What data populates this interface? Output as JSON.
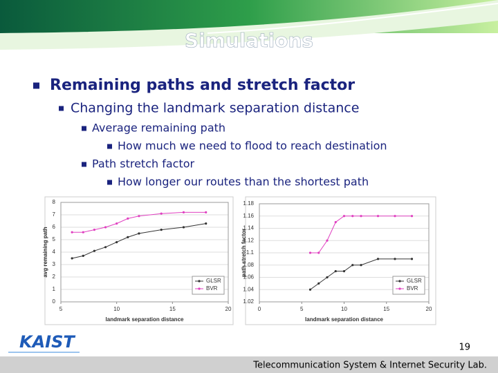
{
  "slide": {
    "title": "Simulations",
    "bullets": [
      {
        "text": "Remaining paths and stretch factor",
        "level": 1
      },
      {
        "text": "Changing the landmark separation distance",
        "level": 2
      },
      {
        "text": "Average remaining path",
        "level": 3
      },
      {
        "text": "How much we need to flood to reach destination",
        "level": 4
      },
      {
        "text": "Path stretch factor",
        "level": 3
      },
      {
        "text": "How longer our routes than the shortest path",
        "level": 4
      }
    ],
    "logo": "KAIST",
    "page": "19",
    "footer": "Telecommunication System & Internet Security Lab."
  },
  "chart_data": [
    {
      "type": "line",
      "x_label": "landmark separation distance",
      "y_label": "avg remaining path",
      "xlim": [
        5,
        20
      ],
      "xticks": [
        5,
        10,
        15,
        20
      ],
      "ylim": [
        0,
        8
      ],
      "yticks": [
        0,
        1,
        2,
        3,
        4,
        5,
        6,
        7,
        8
      ],
      "grid": true,
      "legend": "lower right",
      "x": [
        6,
        7,
        8,
        9,
        10,
        11,
        12,
        14,
        16,
        18
      ],
      "series": [
        {
          "name": "GLSR",
          "color": "#333333",
          "values": [
            3.5,
            3.7,
            4.1,
            4.4,
            4.8,
            5.2,
            5.5,
            5.8,
            6.0,
            6.3
          ]
        },
        {
          "name": "BVR",
          "color": "#e040c0",
          "values": [
            5.6,
            5.6,
            5.8,
            6.0,
            6.3,
            6.7,
            6.9,
            7.1,
            7.2,
            7.2
          ]
        }
      ]
    },
    {
      "type": "line",
      "x_label": "landmark separation distance",
      "y_label": "path stretch factor",
      "xlim": [
        0,
        20
      ],
      "xticks": [
        0,
        5,
        10,
        15,
        20
      ],
      "ylim": [
        1.02,
        1.18
      ],
      "yticks": [
        1.02,
        1.04,
        1.06,
        1.08,
        1.1,
        1.12,
        1.14,
        1.16,
        1.18
      ],
      "grid": true,
      "legend": "lower right",
      "x": [
        6,
        7,
        8,
        9,
        10,
        11,
        12,
        14,
        16,
        18
      ],
      "series": [
        {
          "name": "GLSR",
          "color": "#333333",
          "values": [
            1.04,
            1.05,
            1.06,
            1.07,
            1.07,
            1.08,
            1.08,
            1.09,
            1.09,
            1.09
          ]
        },
        {
          "name": "BVR",
          "color": "#e040c0",
          "values": [
            1.1,
            1.1,
            1.12,
            1.15,
            1.16,
            1.16,
            1.16,
            1.16,
            1.16,
            1.16
          ]
        }
      ]
    }
  ]
}
